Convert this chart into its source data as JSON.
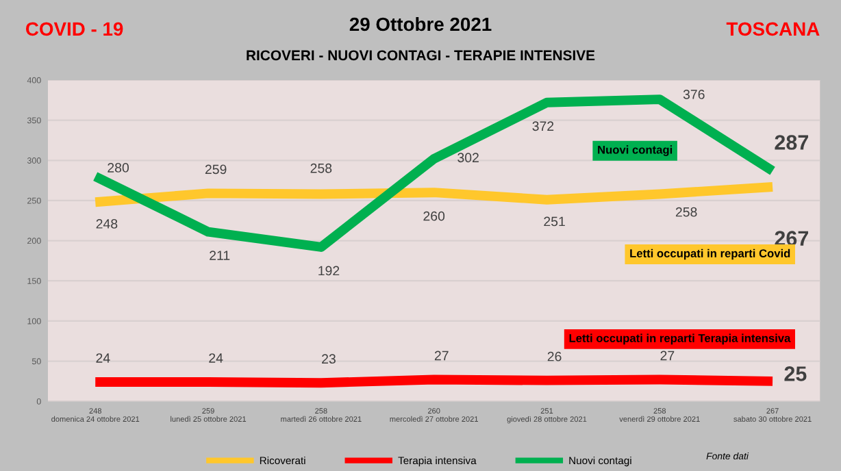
{
  "chart_data": {
    "type": "line",
    "title": "29 Ottobre 2021",
    "subtitle": "RICOVERI - NUOVI CONTAGI - TERAPIE INTENSIVE",
    "categories": [
      "248\ndomenica 24 ottobre 2021",
      "259\nlunedì 25 ottobre 2021",
      "258\nmartedì 26 ottobre 2021",
      "260\nmercoledì 27 ottobre 2021",
      "251\ngiovedì 28 ottobre 2021",
      "258\nvenerdì 29 ottobre 2021",
      "267\nsabato 30 ottobre 2021"
    ],
    "series": [
      {
        "name": "Ricoverati",
        "color": "#ffc72c",
        "values": [
          248,
          259,
          258,
          260,
          251,
          258,
          267
        ]
      },
      {
        "name": "Terapia intensiva",
        "color": "#ff0000",
        "values": [
          24,
          24,
          23,
          27,
          26,
          27,
          25
        ]
      },
      {
        "name": "Nuovi contagi",
        "color": "#00b050",
        "values": [
          280,
          211,
          192,
          302,
          372,
          376,
          287
        ]
      }
    ],
    "ylim": [
      0,
      400
    ],
    "yticks": [
      0,
      50,
      100,
      150,
      200,
      250,
      300,
      350,
      400
    ],
    "grid": "y",
    "legend": "bottom",
    "data_labels": true,
    "marker": "none",
    "line_style": "solid",
    "annotations": [
      "COVID - 19",
      "TOSCANA",
      "Letti occupati in reparti Covid",
      "Letti occupati in reparti Terapia intensiva",
      "Nuovi contagi",
      "Fonte dati"
    ]
  }
}
